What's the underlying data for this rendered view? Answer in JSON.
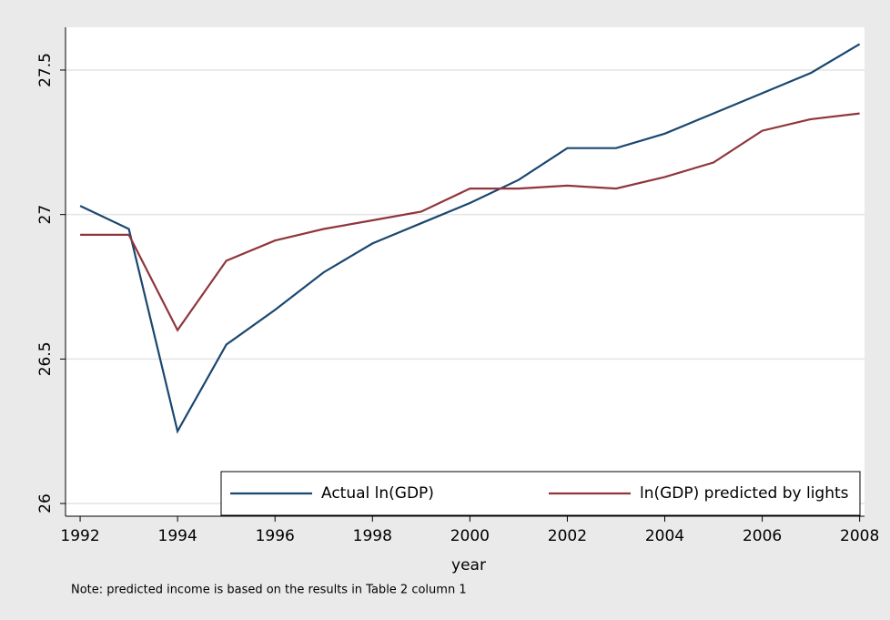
{
  "chart_data": {
    "type": "line",
    "xlabel": "year",
    "note": "Note: predicted income is based on the results in Table 2 column 1",
    "x": [
      1992,
      1993,
      1994,
      1995,
      1996,
      1997,
      1998,
      1999,
      2000,
      2001,
      2002,
      2003,
      2004,
      2005,
      2006,
      2007,
      2008
    ],
    "series": [
      {
        "name": "Actual ln(GDP)",
        "color": "#1a476f",
        "values": [
          27.03,
          26.95,
          26.25,
          26.55,
          26.67,
          26.8,
          26.9,
          26.97,
          27.04,
          27.12,
          27.23,
          27.23,
          27.28,
          27.35,
          27.42,
          27.49,
          27.59
        ]
      },
      {
        "name": "ln(GDP) predicted by lights",
        "color": "#90353b",
        "values": [
          26.93,
          26.93,
          26.6,
          26.84,
          26.91,
          26.95,
          26.98,
          27.01,
          27.09,
          27.09,
          27.1,
          27.09,
          27.13,
          27.18,
          27.29,
          27.33,
          27.35
        ]
      }
    ],
    "xlim": [
      1991.7,
      2008.1
    ],
    "ylim": [
      25.956,
      27.648
    ],
    "xticks": [
      1992,
      1994,
      1996,
      1998,
      2000,
      2002,
      2004,
      2006,
      2008
    ],
    "yticks": [
      26,
      26.5,
      27,
      27.5
    ],
    "grid": true,
    "legend_position": "bottom-right"
  }
}
